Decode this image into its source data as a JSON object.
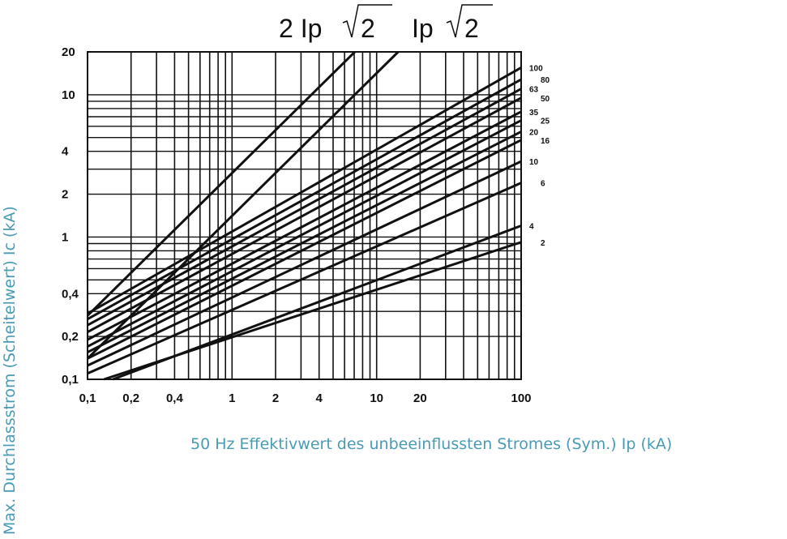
{
  "chart_data": {
    "type": "line",
    "title_formula_left": "2 Ip",
    "title_formula_left_radicand": "2",
    "title_formula_right": "Ip",
    "title_formula_right_radicand": "2",
    "xlabel": "50 Hz Effektivwert des unbeeinflussten Stromes (Sym.) Ip (kA)",
    "ylabel": "Max. Durchlassstrom (Scheitelwert) Ic (kA)",
    "x_scale": "log",
    "y_scale": "log",
    "xlim": [
      0.1,
      100
    ],
    "ylim": [
      0.1,
      20
    ],
    "x_ticks": [
      {
        "value": 0.1,
        "label": "0,1"
      },
      {
        "value": 0.2,
        "label": "0,2"
      },
      {
        "value": 0.4,
        "label": "0,4"
      },
      {
        "value": 1,
        "label": "1"
      },
      {
        "value": 2,
        "label": "2"
      },
      {
        "value": 4,
        "label": "4"
      },
      {
        "value": 10,
        "label": "10"
      },
      {
        "value": 20,
        "label": "20"
      },
      {
        "value": 100,
        "label": "100"
      }
    ],
    "y_ticks": [
      {
        "value": 0.1,
        "label": "0,1"
      },
      {
        "value": 0.2,
        "label": "0,2"
      },
      {
        "value": 0.4,
        "label": "0,4"
      },
      {
        "value": 1,
        "label": "1"
      },
      {
        "value": 2,
        "label": "2"
      },
      {
        "value": 4,
        "label": "4"
      },
      {
        "value": 10,
        "label": "10"
      },
      {
        "value": 20,
        "label": "20"
      }
    ],
    "grid": true,
    "reference_lines": [
      {
        "label": "2 Ip√2",
        "x": [
          0.1,
          7.07
        ],
        "y": [
          0.28,
          20
        ]
      },
      {
        "label": "Ip√2",
        "x": [
          0.1,
          14.1
        ],
        "y": [
          0.14,
          20
        ]
      }
    ],
    "series": [
      {
        "name": "100",
        "x": [
          0.1,
          100
        ],
        "y": [
          0.29,
          15.5
        ]
      },
      {
        "name": "80",
        "x": [
          0.1,
          100
        ],
        "y": [
          0.265,
          12.8
        ]
      },
      {
        "name": "63",
        "x": [
          0.1,
          100
        ],
        "y": [
          0.24,
          11.0
        ]
      },
      {
        "name": "50",
        "x": [
          0.1,
          100
        ],
        "y": [
          0.215,
          9.5
        ]
      },
      {
        "name": "35",
        "x": [
          0.1,
          100
        ],
        "y": [
          0.19,
          7.6
        ]
      },
      {
        "name": "25",
        "x": [
          0.1,
          100
        ],
        "y": [
          0.17,
          6.6
        ]
      },
      {
        "name": "20",
        "x": [
          0.1,
          100
        ],
        "y": [
          0.155,
          5.5
        ]
      },
      {
        "name": "16",
        "x": [
          0.1,
          100
        ],
        "y": [
          0.14,
          4.8
        ]
      },
      {
        "name": "10",
        "x": [
          0.1,
          100
        ],
        "y": [
          0.125,
          3.4
        ]
      },
      {
        "name": "6",
        "x": [
          0.1,
          100
        ],
        "y": [
          0.11,
          2.4
        ]
      },
      {
        "name": "4",
        "x": [
          0.15,
          100
        ],
        "y": [
          0.1,
          1.2
        ]
      },
      {
        "name": "2",
        "x": [
          0.13,
          100
        ],
        "y": [
          0.1,
          0.92
        ]
      }
    ]
  }
}
